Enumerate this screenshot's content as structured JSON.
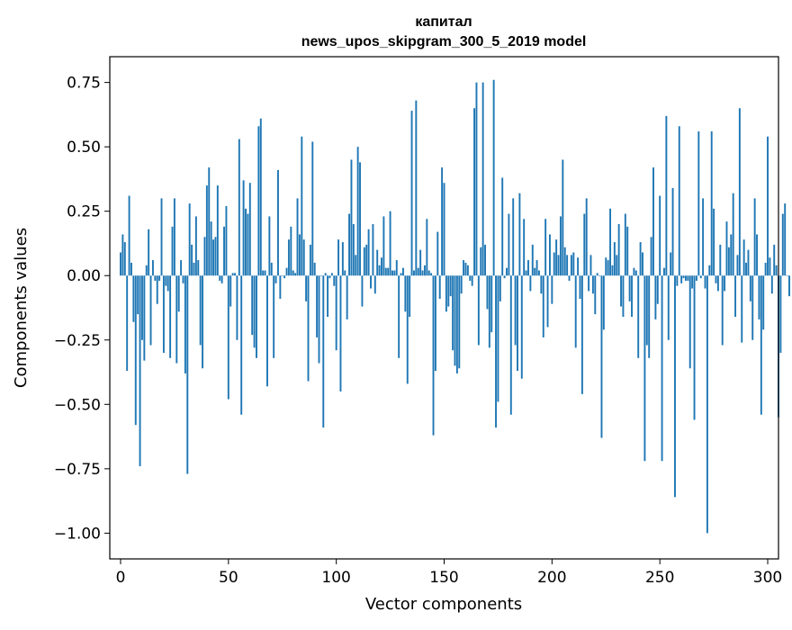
{
  "chart_data": {
    "type": "bar",
    "title_line1": "капитал",
    "title_line2": "news_upos_skipgram_300_5_2019 model",
    "xlabel": "Vector components",
    "ylabel": "Components values",
    "xlim": [
      -5,
      305
    ],
    "ylim": [
      -1.1,
      0.85
    ],
    "xticks": [
      0,
      50,
      100,
      150,
      200,
      250,
      300
    ],
    "xtick_labels": [
      "0",
      "50",
      "100",
      "150",
      "200",
      "250",
      "300"
    ],
    "yticks": [
      -1.0,
      -0.75,
      -0.5,
      -0.25,
      0.0,
      0.25,
      0.5,
      0.75
    ],
    "ytick_labels": [
      "−1.00",
      "−0.75",
      "−0.50",
      "−0.25",
      "0.00",
      "0.25",
      "0.50",
      "0.75"
    ],
    "bar_color": "#1f77b4",
    "values": [
      0.09,
      0.16,
      0.13,
      -0.37,
      0.31,
      0.05,
      -0.18,
      -0.58,
      -0.15,
      -0.74,
      -0.25,
      -0.33,
      0.04,
      0.18,
      -0.27,
      0.06,
      -0.02,
      -0.11,
      -0.02,
      0.3,
      -0.3,
      -0.04,
      -0.06,
      -0.32,
      0.19,
      0.3,
      -0.34,
      -0.14,
      0.06,
      -0.03,
      -0.38,
      -0.77,
      0.28,
      0.12,
      0.05,
      0.23,
      0.06,
      -0.27,
      -0.36,
      0.15,
      0.35,
      0.42,
      0.21,
      0.14,
      0.15,
      0.35,
      -0.02,
      -0.03,
      0.19,
      0.27,
      -0.48,
      -0.12,
      0.01,
      0.01,
      -0.25,
      0.53,
      -0.54,
      0.37,
      0.26,
      0.24,
      0.36,
      -0.23,
      -0.28,
      -0.32,
      0.58,
      0.61,
      0.02,
      0.02,
      -0.43,
      0.23,
      0.05,
      -0.32,
      -0.03,
      0.41,
      -0.09,
      0.0,
      -0.01,
      0.03,
      0.14,
      0.19,
      0.02,
      0.01,
      0.3,
      0.16,
      0.54,
      0.14,
      -0.1,
      -0.41,
      0.12,
      0.52,
      0.05,
      -0.24,
      -0.34,
      0.0,
      -0.59,
      0.01,
      -0.16,
      -0.01,
      0.01,
      -0.04,
      -0.29,
      0.14,
      -0.45,
      0.13,
      0.02,
      -0.17,
      0.24,
      0.45,
      0.2,
      0.08,
      0.5,
      0.44,
      -0.12,
      0.11,
      0.12,
      0.18,
      -0.05,
      0.2,
      -0.07,
      0.1,
      0.04,
      0.07,
      0.23,
      0.03,
      0.03,
      0.25,
      0.02,
      0.02,
      0.06,
      -0.32,
      0.01,
      0.03,
      -0.14,
      -0.42,
      -0.16,
      0.64,
      0.02,
      0.68,
      0.03,
      0.1,
      0.02,
      0.04,
      0.22,
      0.02,
      0.01,
      -0.62,
      -0.37,
      0.17,
      -0.09,
      0.42,
      0.36,
      -0.14,
      -0.12,
      -0.08,
      -0.29,
      -0.35,
      -0.38,
      -0.36,
      -0.07,
      0.06,
      0.05,
      0.04,
      -0.02,
      -0.04,
      0.65,
      0.75,
      -0.27,
      0.11,
      0.75,
      0.12,
      -0.13,
      -0.28,
      -0.22,
      0.76,
      -0.59,
      -0.49,
      -0.1,
      0.38,
      -0.01,
      0.03,
      0.24,
      -0.54,
      0.3,
      -0.27,
      -0.37,
      0.32,
      -0.4,
      0.22,
      0.02,
      0.06,
      -0.06,
      0.12,
      0.03,
      0.06,
      0.02,
      -0.07,
      -0.24,
      0.22,
      -0.2,
      0.16,
      -0.11,
      0.09,
      0.14,
      0.08,
      0.23,
      0.45,
      0.11,
      0.08,
      -0.02,
      0.08,
      0.09,
      -0.28,
      0.07,
      -0.09,
      -0.46,
      0.24,
      0.3,
      -0.06,
      0.08,
      -0.07,
      -0.15,
      0.01,
      0.0,
      -0.63,
      -0.21,
      0.07,
      0.06,
      0.26,
      0.04,
      0.13,
      0.08,
      0.2,
      -0.12,
      -0.16,
      0.24,
      0.19,
      -0.1,
      -0.16,
      0.03,
      0.02,
      -0.32,
      0.13,
      0.09,
      -0.72,
      -0.27,
      -0.32,
      0.15,
      0.42,
      -0.17,
      -0.11,
      0.31,
      -0.72,
      0.03,
      0.62,
      -0.25,
      0.09,
      0.34,
      -0.86,
      -0.04,
      0.58,
      -0.03,
      -0.01,
      -0.02,
      -0.02,
      -0.36,
      -0.05,
      -0.56,
      -0.02,
      0.56,
      -0.01,
      0.3,
      -0.05,
      -1.0,
      0.04,
      0.56,
      0.26,
      -0.03,
      -0.06,
      0.12,
      -0.27,
      -0.06,
      0.21,
      0.11,
      0.16,
      0.32,
      -0.16,
      0.08,
      0.65,
      -0.26,
      0.14,
      0.05,
      0.1,
      -0.1,
      -0.25,
      0.3,
      0.16,
      -0.17,
      -0.54,
      -0.21,
      0.05,
      0.54,
      0.07,
      -0.07,
      0.12,
      0.04,
      -0.55,
      -0.3,
      0.24,
      0.28,
      0.0,
      -0.08
    ]
  }
}
